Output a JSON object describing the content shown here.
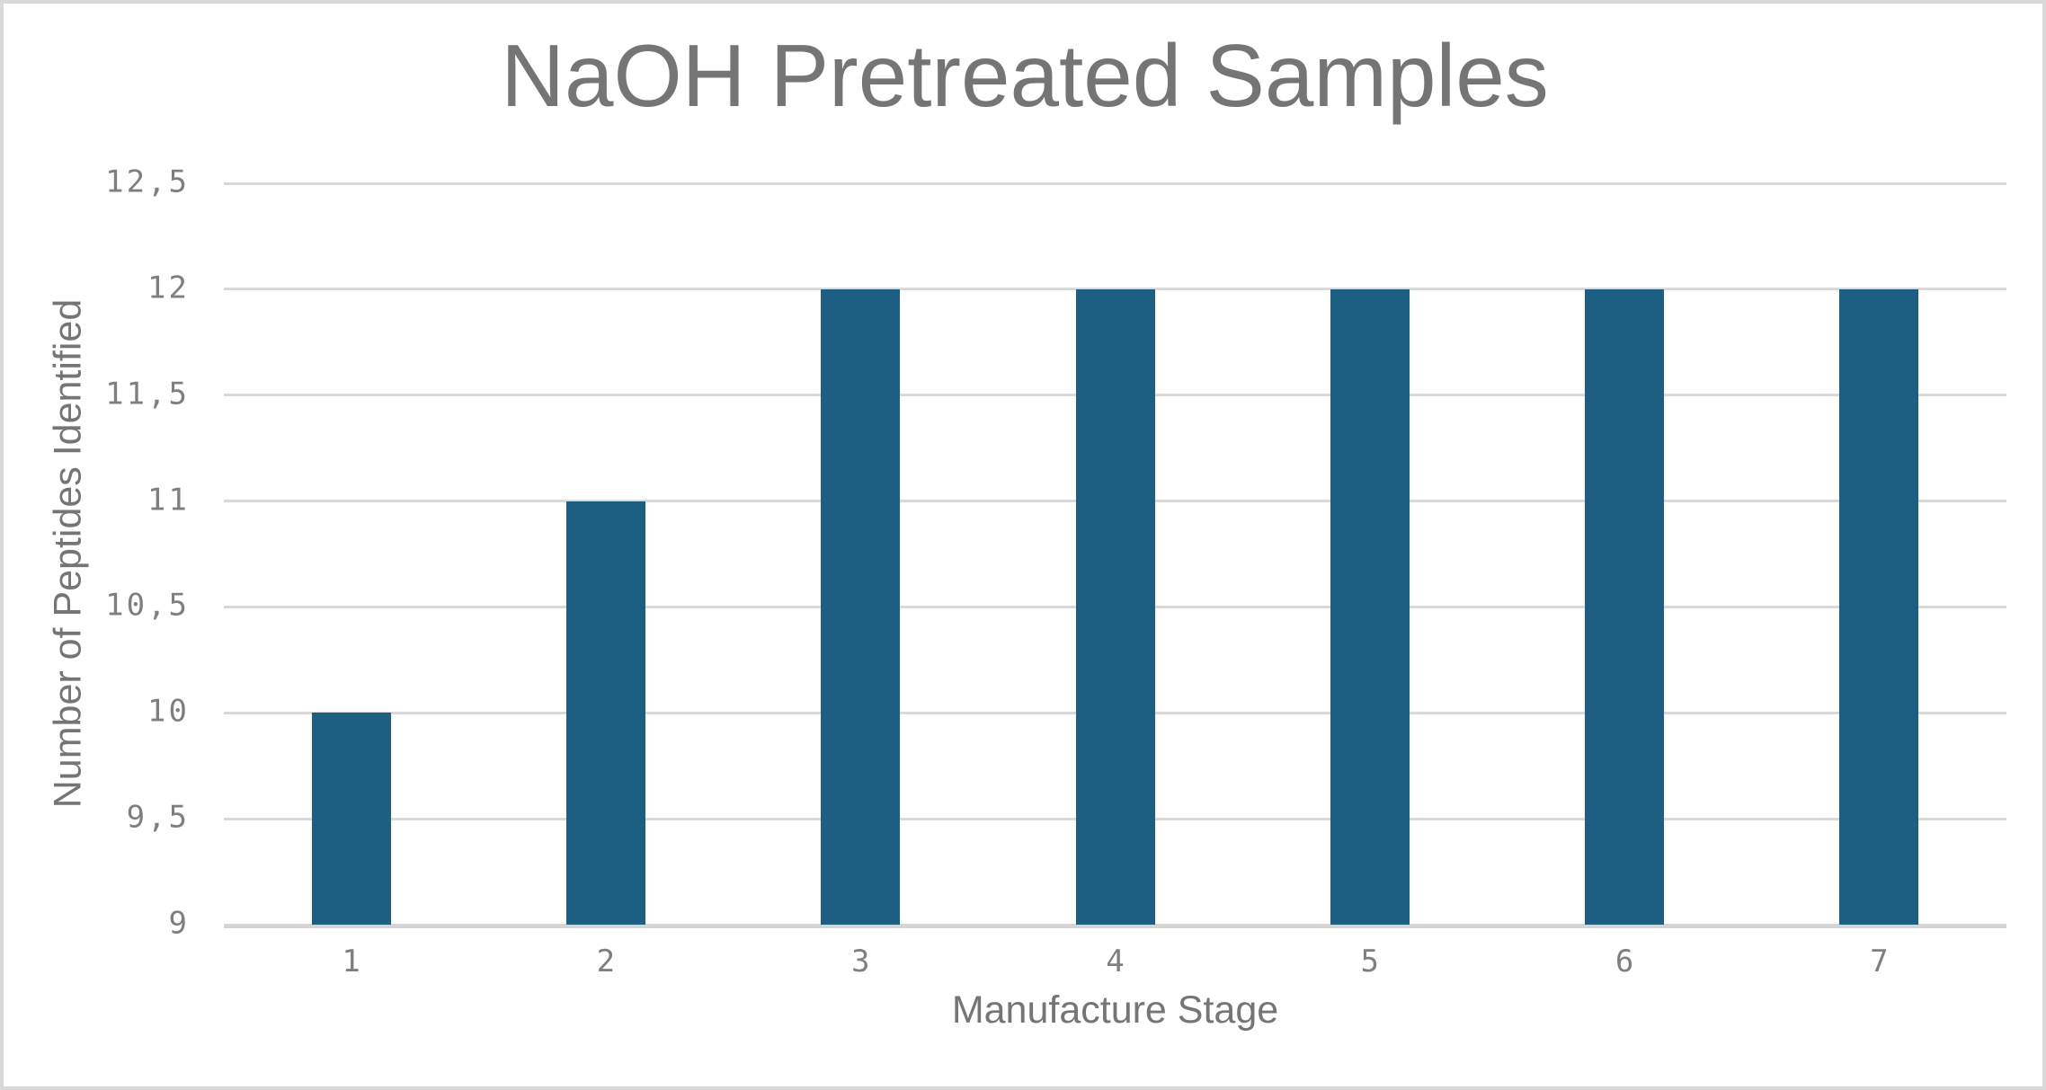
{
  "chart_data": {
    "type": "bar",
    "title": "NaOH Pretreated Samples",
    "xlabel": "Manufacture Stage",
    "ylabel": "Number of Peptides Identified",
    "categories": [
      "1",
      "2",
      "3",
      "4",
      "5",
      "6",
      "7"
    ],
    "values": [
      10,
      11,
      12,
      12,
      12,
      12,
      12
    ],
    "ylim": [
      9,
      12.5
    ],
    "ytick_values": [
      9,
      9.5,
      10,
      10.5,
      11,
      11.5,
      12,
      12.5
    ],
    "ytick_labels": [
      "9",
      "9,5",
      "10",
      "10,5",
      "11",
      "11,5",
      "12",
      "12,5"
    ],
    "decimal_separator": ",",
    "grid": "horizontal",
    "legend": "none",
    "colors": {
      "bar_fill": "#1c5f82",
      "gridline": "#d9d9d9",
      "axis_line": "#d4d4d4",
      "title_text": "#757575",
      "tick_text": "#7f7f7f",
      "frame_border": "#d9d9d9",
      "background": "#ffffff"
    }
  }
}
